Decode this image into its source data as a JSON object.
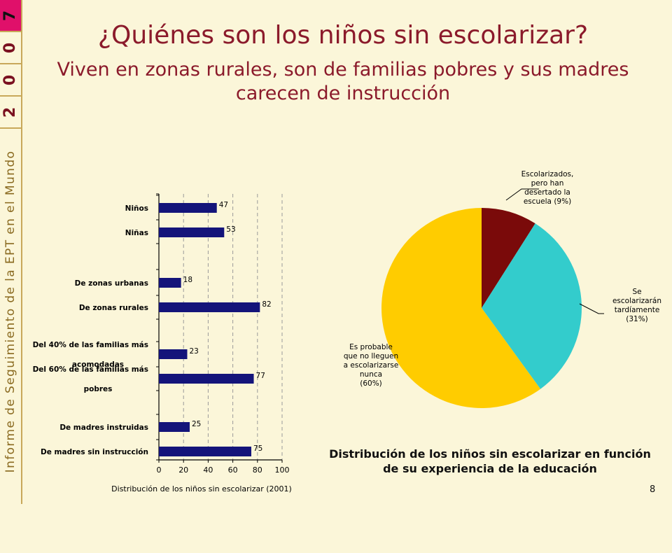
{
  "slide": {
    "title": "¿Quiénes son los niños sin escolarizar?",
    "subtitle": "Viven en zonas rurales, son de familias pobres y sus madres carecen de instrucción",
    "page_number": "8"
  },
  "sidebar": {
    "year_digits": [
      "7",
      "0",
      "0",
      "2"
    ],
    "report_name": "Informe de Seguimiento de la EPT en el Mundo",
    "colors": {
      "highlight": "#e0106a",
      "text": "#8a6a20",
      "year": "#7a1020"
    }
  },
  "chart_data": [
    {
      "type": "bar",
      "orientation": "horizontal",
      "categories": [
        "Niños",
        "Niñas",
        "De zonas urbanas",
        "De zonas rurales",
        "Del 40% de las familias más acomodadas",
        "Del 60% de las familias más pobres",
        "De madres instruidas",
        "De madres sin instrucción"
      ],
      "category_lines": [
        [
          "Niños"
        ],
        [
          "Niñas"
        ],
        [
          "De zonas urbanas"
        ],
        [
          "De zonas rurales"
        ],
        [
          "Del 40% de las familias más",
          "acomodadas"
        ],
        [
          "Del 60% de las familias más",
          "pobres"
        ],
        [
          "De madres instruidas"
        ],
        [
          "De madres sin instrucción"
        ]
      ],
      "groups": [
        [
          0,
          1
        ],
        [
          2,
          3
        ],
        [
          4,
          5
        ],
        [
          6,
          7
        ]
      ],
      "values": [
        47,
        53,
        18,
        82,
        23,
        77,
        25,
        75
      ],
      "xlim": [
        0,
        100
      ],
      "xticks": [
        0,
        20,
        40,
        60,
        80,
        100
      ],
      "xlabel": "Distribución de los niños sin escolarizar (2001)",
      "grid": true,
      "bar_color": "#14147a"
    },
    {
      "type": "pie",
      "title": "Distribución de los niños sin escolarizar en función de su experiencia de la educación",
      "slices": [
        {
          "label": "Escolarizados, pero han desertado la escuela (9%)",
          "label_lines": [
            "Escolarizados,",
            "pero han",
            "desertado la",
            "escuela (9%)"
          ],
          "value": 9,
          "color": "#7a0a0a"
        },
        {
          "label": "Se escolarizarán tardíamente (31%)",
          "label_lines": [
            "Se",
            "escolarizarán",
            "tardíamente",
            "(31%)"
          ],
          "value": 31,
          "color": "#33cccc"
        },
        {
          "label": "Es probable que no lleguen a escolarizarse nunca (60%)",
          "label_lines": [
            "Es probable",
            "que no lleguen",
            "a escolarizarse",
            "nunca",
            "(60%)"
          ],
          "value": 60,
          "color": "#ffcc00"
        }
      ]
    }
  ]
}
